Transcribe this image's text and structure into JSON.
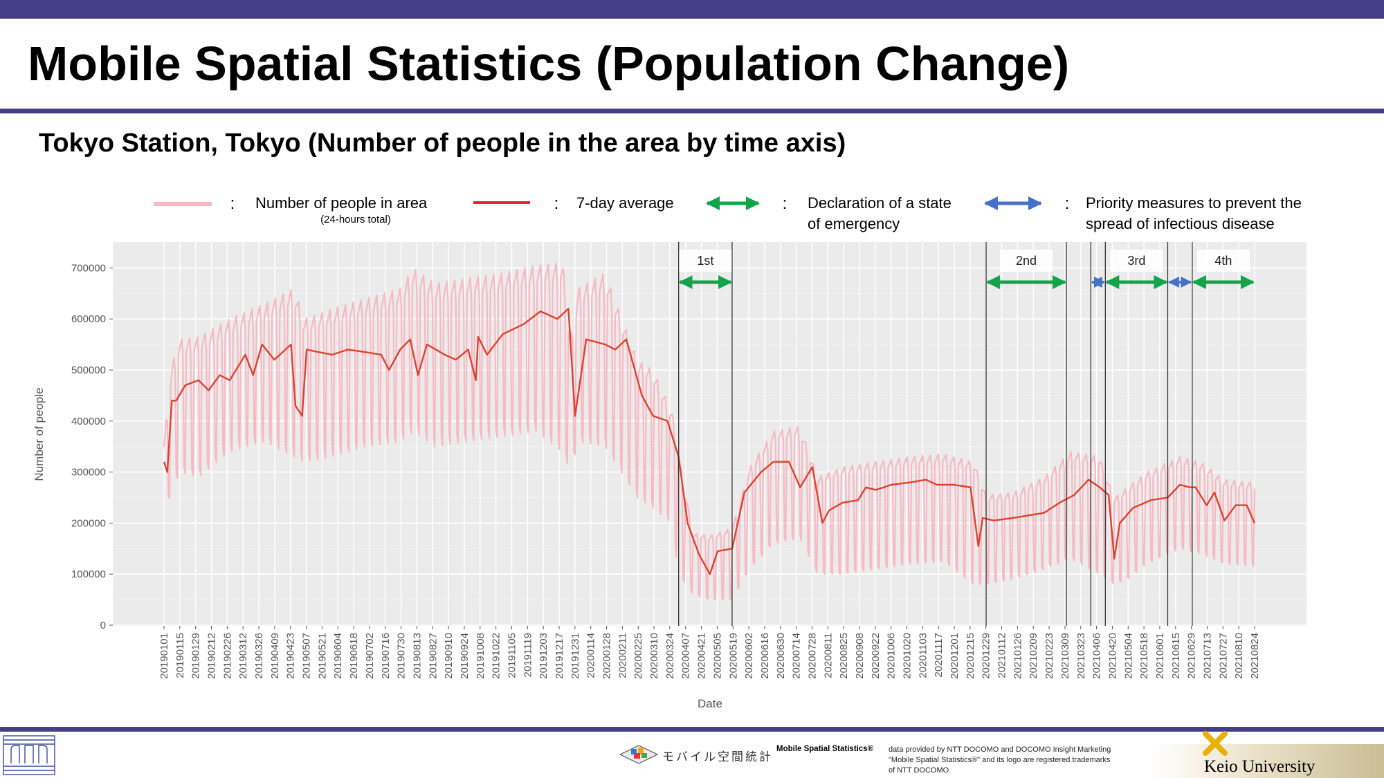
{
  "page": {
    "title": "Mobile Spatial Statistics (Population Change)",
    "subtitle": "Tokyo Station, Tokyo (Number of people in the area by time axis)",
    "colors": {
      "brand_bar": "#453f86",
      "daily_series": "#f7b9c3",
      "average_series": "#d9432f",
      "emergency_arrow": "#11a44a",
      "priority_arrow": "#4472c4",
      "panel_bg": "#ebebeb",
      "grid": "#ffffff"
    }
  },
  "legend": {
    "items": [
      {
        "label": "Number of people in area",
        "sublabel": "(24-hours total)",
        "swatch": "line",
        "color": "#f7b9c3"
      },
      {
        "label": "7-day average",
        "sublabel": "",
        "swatch": "line",
        "color": "#e0282c"
      },
      {
        "label_line1": "Declaration of a state",
        "label_line2": "of emergency",
        "swatch": "double-arrow",
        "color": "#11a44a"
      },
      {
        "label_line1": "Priority measures to prevent the",
        "label_line2": "spread of infectious disease",
        "swatch": "double-arrow",
        "color": "#4472c4"
      }
    ],
    "separator": ":"
  },
  "chart_data": {
    "type": "line",
    "xlabel": "Date",
    "ylabel": "Number of people",
    "x_range": [
      "2019-01-01",
      "2021-09-06"
    ],
    "ylim": [
      0,
      750000
    ],
    "y_ticks": [
      0,
      100000,
      200000,
      300000,
      400000,
      500000,
      600000,
      700000
    ],
    "y_tick_labels": [
      "0",
      "100000",
      "200000",
      "300000",
      "400000",
      "500000",
      "600000",
      "700000"
    ],
    "x_tick_labels": [
      "20190101",
      "20190115",
      "20190129",
      "20190212",
      "20190226",
      "20190312",
      "20190326",
      "20190409",
      "20190423",
      "20190507",
      "20190521",
      "20190604",
      "20190618",
      "20190702",
      "20190716",
      "20190730",
      "20190813",
      "20190827",
      "20190910",
      "20190924",
      "20191008",
      "20191022",
      "20191105",
      "20191119",
      "20191203",
      "20191217",
      "20191231",
      "20200114",
      "20200128",
      "20200211",
      "20200225",
      "20200310",
      "20200324",
      "20200407",
      "20200421",
      "20200505",
      "20200519",
      "20200602",
      "20200616",
      "20200630",
      "20200714",
      "20200728",
      "20200811",
      "20200825",
      "20200908",
      "20200922",
      "20201006",
      "20201020",
      "20201103",
      "20201117",
      "20201201",
      "20201215",
      "20201229",
      "20210112",
      "20210126",
      "20210209",
      "20210223",
      "20210309",
      "20210323",
      "20210406",
      "20210420",
      "20210504",
      "20210518",
      "20210601",
      "20210615",
      "20210629",
      "20210713",
      "20210727",
      "20210810",
      "20210824"
    ],
    "grid": true,
    "legend_position": "top",
    "series": [
      {
        "name": "Number of people in area",
        "kind": "daily_range",
        "note_weekly_cycle": "weekday high / weekend low alternation",
        "x": [
          "2019-01-01",
          "2019-01-08",
          "2019-01-15",
          "2019-02-01",
          "2019-03-01",
          "2019-04-01",
          "2019-04-28",
          "2019-05-07",
          "2019-06-01",
          "2019-07-01",
          "2019-08-01",
          "2019-08-13",
          "2019-09-01",
          "2019-10-01",
          "2019-11-01",
          "2019-12-01",
          "2019-12-25",
          "2020-01-01",
          "2020-01-08",
          "2020-02-01",
          "2020-03-01",
          "2020-03-15",
          "2020-04-01",
          "2020-04-07",
          "2020-04-20",
          "2020-05-05",
          "2020-05-25",
          "2020-06-10",
          "2020-07-01",
          "2020-07-25",
          "2020-08-10",
          "2020-09-01",
          "2020-10-01",
          "2020-11-01",
          "2020-12-01",
          "2020-12-28",
          "2021-01-08",
          "2021-02-01",
          "2021-03-01",
          "2021-03-25",
          "2021-04-20",
          "2021-05-03",
          "2021-05-15",
          "2021-06-01",
          "2021-07-01",
          "2021-07-20",
          "2021-08-10",
          "2021-09-06"
        ],
        "high": [
          360000,
          510000,
          560000,
          565000,
          600000,
          630000,
          660000,
          600000,
          620000,
          640000,
          660000,
          700000,
          670000,
          680000,
          690000,
          705000,
          710000,
          560000,
          660000,
          690000,
          520000,
          500000,
          420000,
          330000,
          180000,
          175000,
          190000,
          310000,
          380000,
          390000,
          290000,
          310000,
          320000,
          330000,
          335000,
          320000,
          255000,
          260000,
          290000,
          340000,
          330000,
          250000,
          270000,
          300000,
          330000,
          320000,
          285000,
          280000
        ],
        "low": [
          220000,
          260000,
          300000,
          290000,
          340000,
          360000,
          330000,
          320000,
          330000,
          350000,
          360000,
          380000,
          350000,
          360000,
          370000,
          380000,
          340000,
          300000,
          360000,
          350000,
          250000,
          230000,
          200000,
          100000,
          60000,
          50000,
          50000,
          110000,
          160000,
          170000,
          100000,
          100000,
          110000,
          120000,
          125000,
          80000,
          80000,
          90000,
          110000,
          130000,
          100000,
          80000,
          90000,
          120000,
          150000,
          140000,
          120000,
          115000
        ]
      },
      {
        "name": "7-day average",
        "kind": "line",
        "x": [
          "2019-01-01",
          "2019-01-04",
          "2019-01-08",
          "2019-01-12",
          "2019-01-20",
          "2019-02-01",
          "2019-02-10",
          "2019-02-20",
          "2019-03-01",
          "2019-03-15",
          "2019-03-22",
          "2019-03-30",
          "2019-04-10",
          "2019-04-25",
          "2019-04-29",
          "2019-05-05",
          "2019-05-09",
          "2019-05-20",
          "2019-06-01",
          "2019-06-15",
          "2019-07-01",
          "2019-07-15",
          "2019-07-22",
          "2019-08-01",
          "2019-08-10",
          "2019-08-17",
          "2019-08-25",
          "2019-09-10",
          "2019-09-20",
          "2019-10-01",
          "2019-10-08",
          "2019-10-10",
          "2019-10-18",
          "2019-11-01",
          "2019-11-20",
          "2019-12-05",
          "2019-12-20",
          "2019-12-30",
          "2020-01-05",
          "2020-01-15",
          "2020-02-01",
          "2020-02-10",
          "2020-02-20",
          "2020-03-05",
          "2020-03-15",
          "2020-03-28",
          "2020-04-07",
          "2020-04-15",
          "2020-04-25",
          "2020-05-05",
          "2020-05-12",
          "2020-05-25",
          "2020-06-05",
          "2020-06-20",
          "2020-07-01",
          "2020-07-15",
          "2020-07-25",
          "2020-08-05",
          "2020-08-14",
          "2020-08-20",
          "2020-09-01",
          "2020-09-15",
          "2020-09-22",
          "2020-10-01",
          "2020-10-15",
          "2020-11-01",
          "2020-11-15",
          "2020-11-25",
          "2020-12-10",
          "2020-12-25",
          "2021-01-01",
          "2021-01-05",
          "2021-01-15",
          "2021-02-01",
          "2021-02-15",
          "2021-03-01",
          "2021-03-15",
          "2021-03-28",
          "2021-04-10",
          "2021-04-20",
          "2021-04-28",
          "2021-05-03",
          "2021-05-08",
          "2021-05-20",
          "2021-06-05",
          "2021-06-20",
          "2021-07-01",
          "2021-07-10",
          "2021-07-15",
          "2021-07-25",
          "2021-08-01",
          "2021-08-10",
          "2021-08-20",
          "2021-08-30",
          "2021-09-06"
        ],
        "values": [
          320000,
          300000,
          440000,
          440000,
          470000,
          480000,
          460000,
          490000,
          480000,
          530000,
          490000,
          550000,
          520000,
          550000,
          430000,
          410000,
          540000,
          535000,
          530000,
          540000,
          535000,
          530000,
          500000,
          540000,
          560000,
          490000,
          550000,
          530000,
          520000,
          540000,
          480000,
          565000,
          530000,
          570000,
          590000,
          615000,
          600000,
          620000,
          410000,
          560000,
          550000,
          540000,
          560000,
          450000,
          410000,
          400000,
          330000,
          200000,
          140000,
          100000,
          145000,
          150000,
          260000,
          300000,
          320000,
          320000,
          270000,
          310000,
          200000,
          225000,
          240000,
          245000,
          270000,
          265000,
          275000,
          280000,
          285000,
          275000,
          275000,
          270000,
          155000,
          210000,
          205000,
          210000,
          215000,
          220000,
          240000,
          255000,
          285000,
          270000,
          255000,
          130000,
          200000,
          230000,
          245000,
          250000,
          275000,
          270000,
          270000,
          235000,
          260000,
          205000,
          235000,
          235000,
          200000
        ]
      }
    ],
    "vertical_lines": [
      "2020-04-07",
      "2020-05-25",
      "2021-01-08",
      "2021-03-21",
      "2021-04-12",
      "2021-04-25",
      "2021-06-20",
      "2021-07-12"
    ],
    "periods": [
      {
        "label": "1st",
        "kind": "emergency",
        "start": "2020-04-07",
        "end": "2020-05-25"
      },
      {
        "label": "2nd",
        "kind": "emergency",
        "start": "2021-01-08",
        "end": "2021-03-21"
      },
      {
        "label": "",
        "kind": "priority",
        "start": "2021-04-12",
        "end": "2021-04-25"
      },
      {
        "label": "3rd",
        "kind": "emergency",
        "start": "2021-04-25",
        "end": "2021-06-20"
      },
      {
        "label": "",
        "kind": "priority",
        "start": "2021-06-20",
        "end": "2021-07-12"
      },
      {
        "label": "4th",
        "kind": "emergency",
        "start": "2021-07-12",
        "end": "2021-09-06"
      }
    ]
  },
  "footer": {
    "logo_jp": "モバイル空間統計",
    "mss_label": "Mobile Spatial Statistics®",
    "note_lines": [
      "data provided by NTT DOCOMO and DOCOMO Insight Marketing",
      "\"Mobile Spatial Statistics®\" and its logo are registered trademarks",
      "of NTT DOCOMO."
    ],
    "university": "Keio University"
  }
}
